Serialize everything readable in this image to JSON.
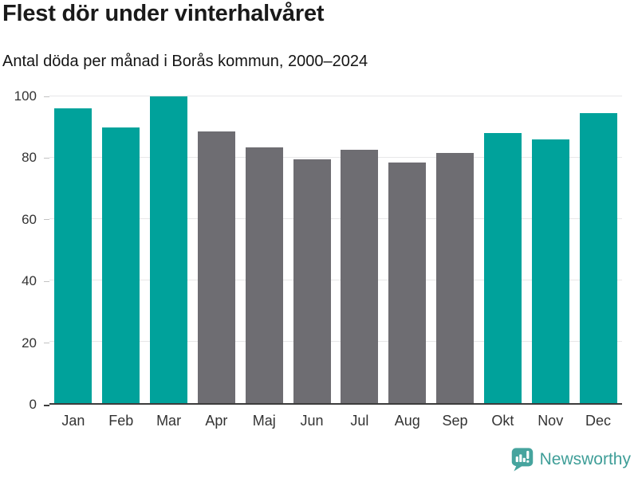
{
  "title": "Flest dör under vinterhalvåret",
  "subtitle": "Antal döda per månad i Borås kommun, 2000–2024",
  "colors": {
    "winter_bar": "#00a29b",
    "summer_bar": "#6e6d72",
    "axis": "#3c3c3c",
    "grid": "#e7e7e8",
    "tick": "#c2c2c2",
    "label_text": "#333333",
    "logo_bubble": "#46a49e",
    "logo_text": "#3f9e98"
  },
  "chart_data": {
    "type": "bar",
    "title": "Flest dör under vinterhalvåret",
    "subtitle": "Antal döda per månad i Borås kommun, 2000–2024",
    "categories": [
      "Jan",
      "Feb",
      "Mar",
      "Apr",
      "Maj",
      "Jun",
      "Jul",
      "Aug",
      "Sep",
      "Okt",
      "Nov",
      "Dec"
    ],
    "values": [
      96,
      90,
      100,
      88.5,
      83.5,
      79.5,
      82.5,
      78.5,
      81.5,
      88,
      86,
      94.5
    ],
    "groups": [
      "winter",
      "winter",
      "winter",
      "summer",
      "summer",
      "summer",
      "summer",
      "summer",
      "summer",
      "winter",
      "winter",
      "winter"
    ],
    "xlabel": "",
    "ylabel": "",
    "ylim": [
      0,
      100
    ],
    "yticks": [
      0,
      20,
      40,
      60,
      80,
      100
    ],
    "grid": true,
    "legend": false,
    "highlight_meaning": "winter half-year months in teal, summer months in gray"
  },
  "footer": {
    "brand": "Newsworthy",
    "logo_icon": "bar-chart-speech-bubble"
  }
}
